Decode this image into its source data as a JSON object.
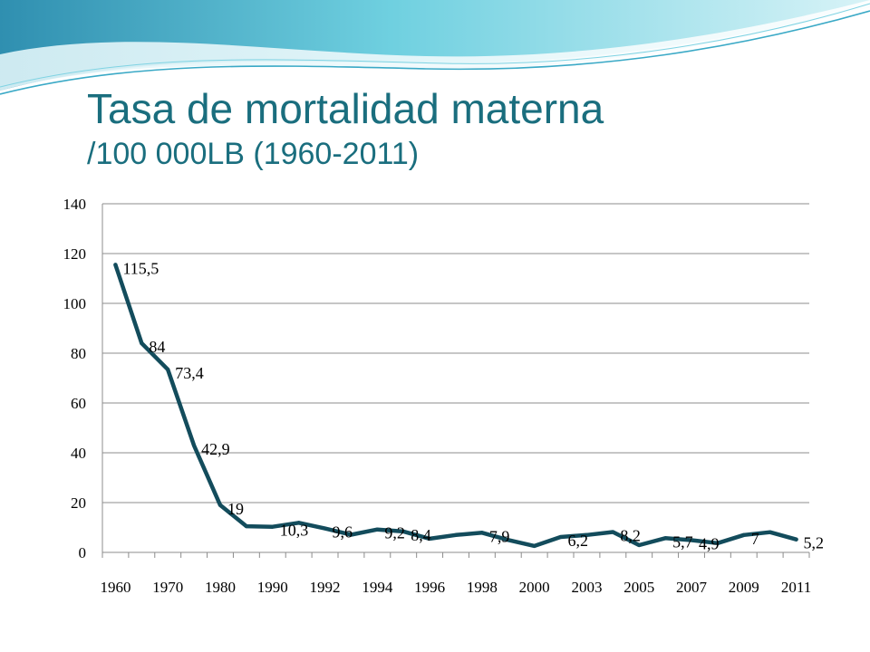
{
  "slide": {
    "title_line1": "Tasa de mortalidad materna",
    "title_line2": "/100 000LB (1960-2011)"
  },
  "colors": {
    "title": "#1a6e7e",
    "line": "#134c5c",
    "gridline": "#8c8c8c",
    "accent_swoosh": "#58c2d8"
  },
  "chart_data": {
    "type": "line",
    "title": "",
    "xlabel": "",
    "ylabel": "",
    "ylim": [
      0,
      140
    ],
    "yticks": [
      0,
      20,
      40,
      60,
      80,
      100,
      120,
      140
    ],
    "grid": true,
    "legend": "none",
    "x_tick_labels": [
      "1960",
      "1970",
      "1980",
      "1990",
      "1992",
      "1994",
      "1996",
      "1998",
      "2000",
      "2003",
      "2005",
      "2007",
      "2009",
      "2011"
    ],
    "series": [
      {
        "values": [
          115.5,
          84,
          73.4,
          42.9,
          19,
          10.5,
          10.3,
          11.9,
          9.6,
          7.1,
          9.2,
          8.4,
          5.5,
          7,
          7.9,
          5,
          2.6,
          6.2,
          7,
          8.2,
          2.9,
          5.7,
          4.9,
          3.7,
          7,
          8.1,
          5.2
        ]
      }
    ],
    "data_labels": [
      {
        "index": 0,
        "text": "115,5"
      },
      {
        "index": 1,
        "text": "84"
      },
      {
        "index": 2,
        "text": "73,4"
      },
      {
        "index": 3,
        "text": "42,9"
      },
      {
        "index": 4,
        "text": "19"
      },
      {
        "index": 6,
        "text": "10,3"
      },
      {
        "index": 8,
        "text": "9,6"
      },
      {
        "index": 10,
        "text": "9,2"
      },
      {
        "index": 11,
        "text": "8,4"
      },
      {
        "index": 14,
        "text": "7,9"
      },
      {
        "index": 17,
        "text": "6,2"
      },
      {
        "index": 19,
        "text": "8,2"
      },
      {
        "index": 21,
        "text": "5,7"
      },
      {
        "index": 22,
        "text": "4,9"
      },
      {
        "index": 24,
        "text": "7"
      },
      {
        "index": 26,
        "text": "5,2"
      }
    ]
  }
}
